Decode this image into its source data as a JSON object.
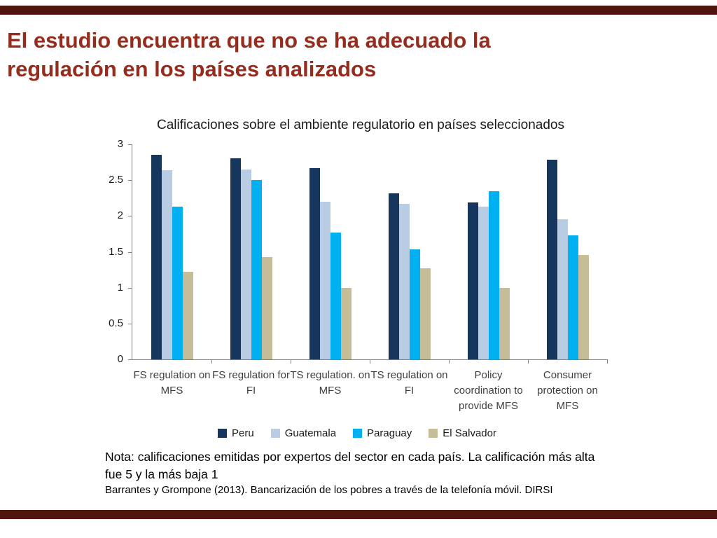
{
  "slide": {
    "title": "El estudio encuentra que no se ha adecuado la regulación en los países analizados"
  },
  "notes": {
    "nota": "Nota: calificaciones emitidas por expertos del sector en cada país. La calificación más alta fue 5 y la más baja 1",
    "source": "Barrantes y Grompone (2013). Bancarización de los pobres a través de la telefonía móvil. DIRSI"
  },
  "colors": {
    "accent_bar": "#4F150F",
    "title_text": "#952D1F",
    "axis": "#7F7F7F"
  },
  "chart_data": {
    "type": "bar",
    "title": "Calificaciones sobre el ambiente regulatorio en países seleccionados",
    "categories": [
      "FS regulation on MFS",
      "FS regulation for FI",
      "TS regulation. on MFS",
      "TS regulation on FI",
      "Policy coordination to provide MFS",
      "Consumer protection on MFS"
    ],
    "series": [
      {
        "name": "Peru",
        "color": "#17365D",
        "values": [
          2.85,
          2.8,
          2.67,
          2.32,
          2.19,
          2.79
        ]
      },
      {
        "name": "Guatemala",
        "color": "#B8CCE4",
        "values": [
          2.64,
          2.65,
          2.2,
          2.17,
          2.13,
          1.95
        ]
      },
      {
        "name": "Paraguay",
        "color": "#00B0F0",
        "values": [
          2.13,
          2.5,
          1.77,
          1.53,
          2.35,
          1.73
        ]
      },
      {
        "name": "El Salvador",
        "color": "#C4BD97",
        "values": [
          1.22,
          1.43,
          1.0,
          1.27,
          1.0,
          1.46
        ]
      }
    ],
    "ylim": [
      0,
      3
    ],
    "yticks": [
      0,
      0.5,
      1,
      1.5,
      2,
      2.5,
      3
    ],
    "grid": false,
    "legend_position": "bottom"
  }
}
